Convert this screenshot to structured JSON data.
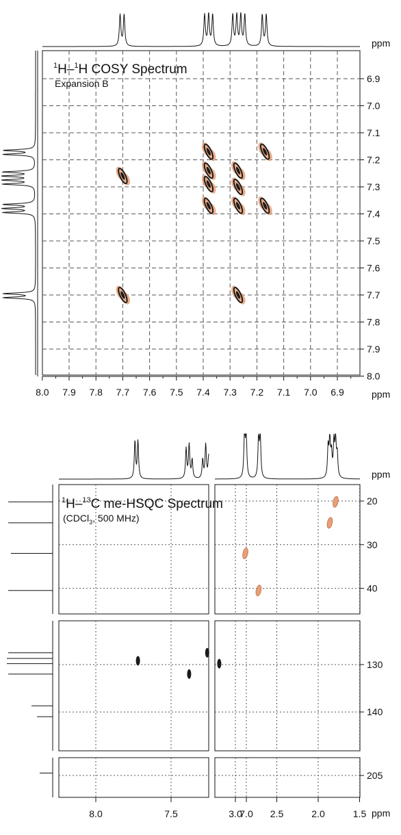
{
  "colors": {
    "positive": "#1a1a1a",
    "negative": "#e8a078",
    "grid": "#555555",
    "axis": "#111111"
  },
  "chart_data": [
    {
      "type": "heatmap",
      "title": "1H–1H COSY Spectrum",
      "title_parts": {
        "sup1": "1",
        "h1": "H–",
        "sup2": "1",
        "rest": "H COSY Spectrum"
      },
      "subtitle": "Expansion B",
      "x_unit": "ppm",
      "y_unit": "ppm",
      "xlim": [
        8.0,
        6.8
      ],
      "ylim": [
        6.8,
        8.0
      ],
      "x_ticks": [
        "8.0",
        "7.9",
        "7.8",
        "7.7",
        "7.6",
        "7.5",
        "7.4",
        "7.3",
        "7.2",
        "7.1",
        "7.0",
        "6.9"
      ],
      "y_ticks": [
        "6.9",
        "7.0",
        "7.1",
        "7.2",
        "7.3",
        "7.4",
        "7.5",
        "7.6",
        "7.7",
        "7.8",
        "7.9",
        "8.0"
      ],
      "grid": true,
      "projection_peaks": [
        7.71,
        7.695,
        7.395,
        7.38,
        7.365,
        7.29,
        7.275,
        7.26,
        7.245,
        7.18,
        7.165
      ],
      "cross_peaks": [
        {
          "x": 7.7,
          "y": 7.26
        },
        {
          "x": 7.7,
          "y": 7.7
        },
        {
          "x": 7.38,
          "y": 7.17
        },
        {
          "x": 7.38,
          "y": 7.24
        },
        {
          "x": 7.38,
          "y": 7.29
        },
        {
          "x": 7.38,
          "y": 7.37
        },
        {
          "x": 7.27,
          "y": 7.24
        },
        {
          "x": 7.27,
          "y": 7.3
        },
        {
          "x": 7.27,
          "y": 7.37
        },
        {
          "x": 7.27,
          "y": 7.7
        },
        {
          "x": 7.17,
          "y": 7.17
        },
        {
          "x": 7.17,
          "y": 7.37
        }
      ]
    },
    {
      "type": "heatmap",
      "title": "1H–13C me-HSQC Spectrum",
      "title_parts": {
        "sup1": "1",
        "h1": "H–",
        "sup2": "13",
        "rest": "C me-HSQC Spectrum"
      },
      "subtitle": "(CDCl3, 500 MHz)",
      "subtitle_parts": {
        "a": "(CDCl",
        "sub": "3",
        "b": ", 500 MHz)"
      },
      "x_unit": "ppm",
      "y_unit": "ppm",
      "x_ticks": [
        "8.0",
        "7.5",
        "7.0",
        "3.0",
        "2.5",
        "2.0",
        "1.5"
      ],
      "y_ticks": [
        "20",
        "30",
        "40",
        "130",
        "140",
        "205"
      ],
      "grid": true,
      "peaks": [
        {
          "x": 2.88,
          "y": 32,
          "phase": "negative"
        },
        {
          "x": 2.72,
          "y": 40.5,
          "phase": "negative"
        },
        {
          "x": 1.86,
          "y": 25,
          "phase": "negative"
        },
        {
          "x": 1.79,
          "y": 20.2,
          "phase": "negative"
        },
        {
          "x": 7.72,
          "y": 129.2,
          "phase": "positive"
        },
        {
          "x": 7.38,
          "y": 132.0,
          "phase": "positive"
        },
        {
          "x": 7.26,
          "y": 127.5,
          "phase": "positive"
        },
        {
          "x": 7.18,
          "y": 129.8,
          "phase": "positive"
        }
      ]
    }
  ]
}
